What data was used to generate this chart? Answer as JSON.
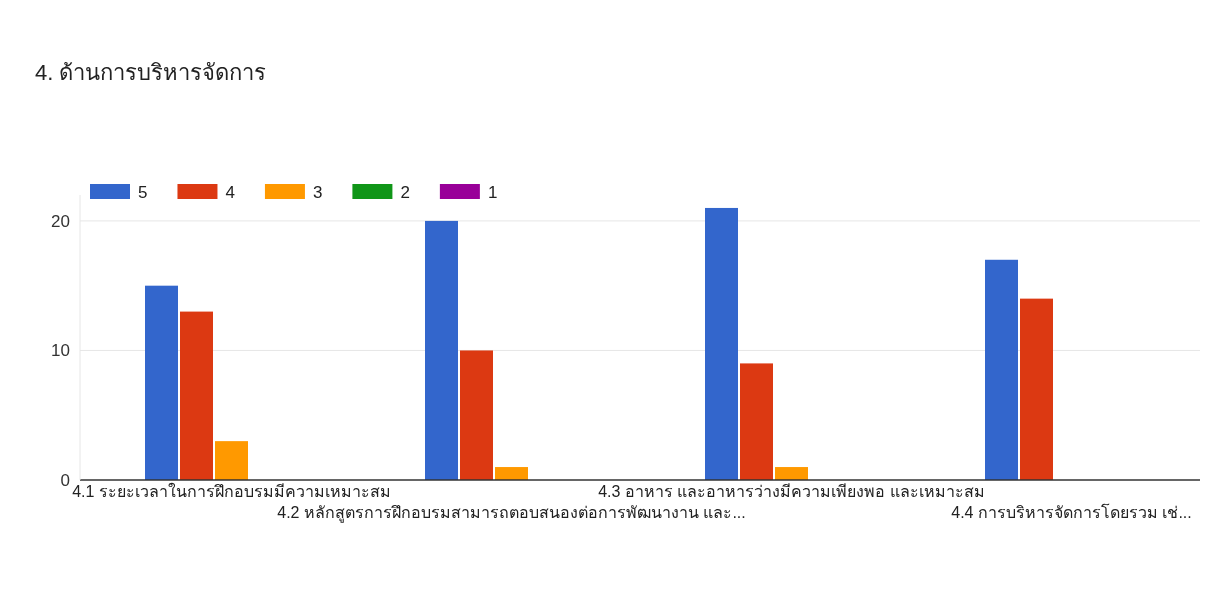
{
  "chart_data": {
    "type": "bar",
    "title": "4. ด้านการบริหารจัดการ",
    "categories": [
      "4.1 ระยะเวลาในการฝึกอบรมมีความเหมาะสม",
      "4.2 หลักสูตรการฝึกอบรมสามารถตอบสนองต่อการพัฒนางาน และ...",
      "4.3 อาหาร และอาหารว่างมีความเพียงพอ และเหมาะสม",
      "4.4 การบริหารจัดการโดยรวม เช่..."
    ],
    "series": [
      {
        "name": "5",
        "color": "#3366cc",
        "values": [
          15,
          20,
          21,
          17
        ]
      },
      {
        "name": "4",
        "color": "#dc3912",
        "values": [
          13,
          10,
          9,
          14
        ]
      },
      {
        "name": "3",
        "color": "#ff9900",
        "values": [
          3,
          1,
          1,
          0
        ]
      },
      {
        "name": "2",
        "color": "#109618",
        "values": [
          0,
          0,
          0,
          0
        ]
      },
      {
        "name": "1",
        "color": "#990099",
        "values": [
          0,
          0,
          0,
          0
        ]
      }
    ],
    "ylim": [
      0,
      22
    ],
    "yticks": [
      0,
      10,
      20
    ],
    "grid": "y",
    "legend": "top left"
  }
}
